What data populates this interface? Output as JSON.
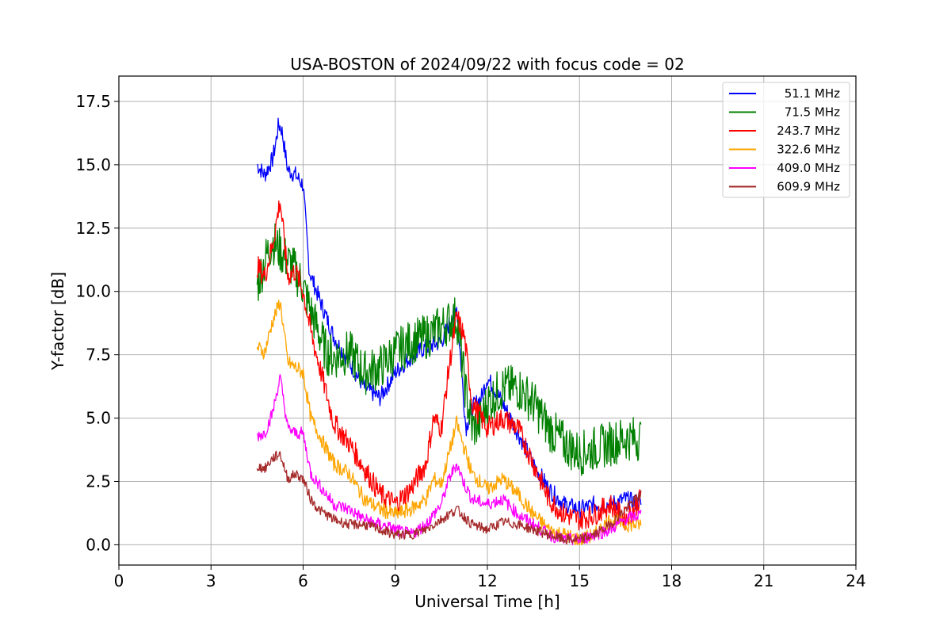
{
  "chart_data": {
    "type": "line",
    "title": "USA-BOSTON of 2024/09/22 with focus code = 02",
    "xlabel": "Universal Time [h]",
    "ylabel": "Y-factor [dB]",
    "xlim": [
      0,
      24
    ],
    "ylim": [
      -0.8,
      18.5
    ],
    "xticks": [
      0,
      3,
      6,
      9,
      12,
      15,
      18,
      21,
      24
    ],
    "xtick_labels": [
      "0",
      "3",
      "6",
      "9",
      "12",
      "15",
      "18",
      "21",
      "24"
    ],
    "yticks": [
      0,
      2.5,
      5,
      7.5,
      10,
      12.5,
      15,
      17.5
    ],
    "ytick_labels": [
      "0.0",
      "2.5",
      "5.0",
      "7.5",
      "10.0",
      "12.5",
      "15.0",
      "17.5"
    ],
    "grid": true,
    "legend_position": "top-right",
    "series": [
      {
        "name": " 51.1 MHz",
        "color": "#0000ff",
        "x": [
          4.5,
          4.75,
          5.0,
          5.1,
          5.2,
          5.3,
          5.4,
          5.5,
          5.75,
          6.0,
          6.2,
          6.5,
          7.0,
          7.5,
          8.0,
          8.5,
          9.0,
          9.5,
          10.0,
          10.5,
          11.0,
          11.3,
          11.5,
          11.8,
          12.0,
          12.5,
          13.0,
          13.5,
          14.0,
          14.5,
          15.0,
          15.5,
          16.0,
          16.5,
          17.0
        ],
        "y": [
          15.0,
          14.6,
          15.2,
          15.8,
          16.6,
          16.4,
          15.6,
          14.8,
          14.6,
          14.2,
          10.8,
          9.8,
          8.2,
          7.2,
          6.2,
          5.8,
          6.8,
          7.4,
          7.8,
          8.0,
          9.4,
          4.6,
          5.4,
          5.8,
          6.6,
          5.6,
          4.4,
          3.2,
          2.2,
          1.6,
          1.4,
          1.6,
          1.6,
          1.8,
          1.6
        ]
      },
      {
        "name": " 71.5 MHz",
        "color": "#008000",
        "x": [
          4.5,
          4.75,
          5.0,
          5.25,
          5.5,
          5.75,
          6.0,
          6.25,
          6.5,
          6.75,
          7.0,
          7.5,
          8.0,
          8.5,
          9.0,
          9.5,
          10.0,
          10.5,
          11.0,
          11.3,
          11.5,
          11.75,
          12.0,
          12.5,
          13.0,
          13.5,
          14.0,
          14.5,
          15.0,
          15.5,
          16.0,
          16.5,
          17.0
        ],
        "y": [
          10.2,
          11.2,
          12.0,
          11.6,
          11.2,
          10.8,
          10.2,
          9.2,
          8.4,
          7.6,
          7.4,
          7.6,
          6.8,
          7.0,
          7.6,
          8.0,
          8.2,
          8.6,
          9.0,
          6.0,
          4.6,
          4.8,
          5.6,
          6.2,
          6.2,
          5.6,
          4.6,
          4.0,
          3.6,
          3.8,
          4.0,
          4.2,
          4.2
        ]
      },
      {
        "name": "243.7 MHz",
        "color": "#ff0000",
        "x": [
          4.5,
          4.75,
          5.0,
          5.25,
          5.5,
          5.75,
          6.0,
          6.25,
          6.5,
          7.0,
          7.5,
          8.0,
          8.5,
          9.0,
          9.5,
          10.0,
          10.25,
          10.5,
          10.75,
          11.0,
          11.25,
          11.5,
          12.0,
          12.5,
          13.0,
          13.5,
          14.0,
          14.5,
          15.0,
          15.5,
          16.0,
          16.5,
          17.0
        ],
        "y": [
          11.0,
          10.6,
          11.8,
          13.6,
          10.6,
          10.8,
          10.0,
          8.4,
          7.2,
          4.8,
          4.0,
          3.0,
          2.0,
          1.6,
          2.2,
          3.2,
          5.0,
          4.6,
          7.0,
          9.0,
          8.2,
          5.6,
          4.6,
          5.0,
          4.6,
          3.2,
          1.8,
          1.2,
          1.0,
          1.2,
          1.6,
          1.0,
          1.8
        ]
      },
      {
        "name": "322.6 MHz",
        "color": "#ffa500",
        "x": [
          4.5,
          4.75,
          5.0,
          5.25,
          5.5,
          5.75,
          6.0,
          6.25,
          6.5,
          7.0,
          7.5,
          8.0,
          8.5,
          9.0,
          9.5,
          10.0,
          10.25,
          10.5,
          10.75,
          11.0,
          11.25,
          11.5,
          12.0,
          12.5,
          13.0,
          13.5,
          14.0,
          14.5,
          15.0,
          15.5,
          16.0,
          16.5,
          17.0
        ],
        "y": [
          7.8,
          7.6,
          8.8,
          9.6,
          7.2,
          7.0,
          6.8,
          5.0,
          4.4,
          3.2,
          2.8,
          1.8,
          1.4,
          1.2,
          1.4,
          1.8,
          2.6,
          2.4,
          3.6,
          4.8,
          3.8,
          2.8,
          2.2,
          2.6,
          2.0,
          1.2,
          0.6,
          0.4,
          0.2,
          0.4,
          1.0,
          0.8,
          0.8
        ]
      },
      {
        "name": "409.0 MHz",
        "color": "#ff00ff",
        "x": [
          4.5,
          4.75,
          5.0,
          5.25,
          5.5,
          5.75,
          6.0,
          6.25,
          6.5,
          7.0,
          7.5,
          8.0,
          8.5,
          9.0,
          9.5,
          10.0,
          10.5,
          10.75,
          11.0,
          11.25,
          11.5,
          12.0,
          12.5,
          13.0,
          13.5,
          14.0,
          14.5,
          15.0,
          15.5,
          16.0,
          16.5,
          17.0
        ],
        "y": [
          4.3,
          4.4,
          5.2,
          6.6,
          4.6,
          4.4,
          4.4,
          2.8,
          2.4,
          1.6,
          1.4,
          1.0,
          0.8,
          0.6,
          0.4,
          0.8,
          1.6,
          2.6,
          3.2,
          2.4,
          1.8,
          1.6,
          1.8,
          1.2,
          0.8,
          0.4,
          0.2,
          0.2,
          0.4,
          0.6,
          1.0,
          1.2
        ]
      },
      {
        "name": "609.9 MHz",
        "color": "#a52a2a",
        "x": [
          4.5,
          4.75,
          5.0,
          5.25,
          5.5,
          5.75,
          6.0,
          6.25,
          6.5,
          7.0,
          7.5,
          8.0,
          8.5,
          9.0,
          9.5,
          10.0,
          10.5,
          11.0,
          11.5,
          12.0,
          12.5,
          13.0,
          13.5,
          14.0,
          14.5,
          15.0,
          15.5,
          16.0,
          16.5,
          17.0
        ],
        "y": [
          3.1,
          3.0,
          3.4,
          3.6,
          2.6,
          2.8,
          2.6,
          1.8,
          1.4,
          1.0,
          0.8,
          0.8,
          0.6,
          0.4,
          0.4,
          0.6,
          1.0,
          1.4,
          0.8,
          0.6,
          0.9,
          0.8,
          0.6,
          0.4,
          0.2,
          0.2,
          0.4,
          0.8,
          1.4,
          2.0
        ]
      }
    ]
  }
}
